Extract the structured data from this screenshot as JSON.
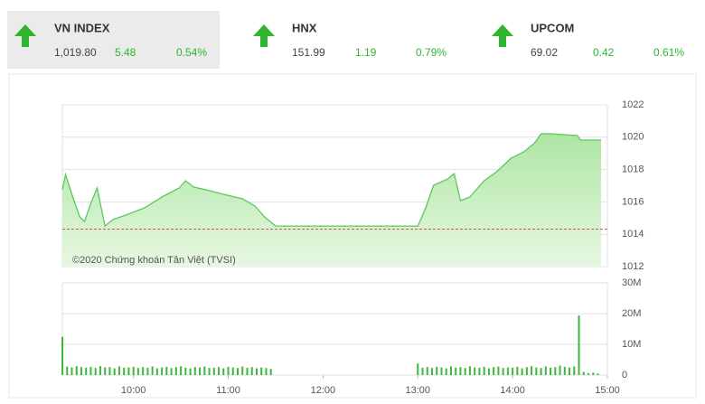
{
  "tickers": [
    {
      "name": "VN INDEX",
      "value": "1,019.80",
      "change": 5.48,
      "percent": "0.54%"
    },
    {
      "name": "HNX",
      "value": 151.99,
      "change": 1.19,
      "percent": "0.79%"
    },
    {
      "name": "UPCOM",
      "value": 69.02,
      "change": 0.42,
      "percent": "0.61%"
    }
  ],
  "chart_data": [
    {
      "type": "area",
      "annotation": "©2020 Chứng khoán Tân Việt (TVSI)",
      "color": "#5cc85c",
      "reference": 1014.32,
      "x": [
        555,
        557,
        561,
        566,
        569,
        573,
        577,
        579,
        582,
        587,
        595,
        607,
        618,
        629,
        633,
        638,
        646,
        657,
        669,
        677,
        683,
        690,
        780,
        785,
        790,
        799,
        803,
        807,
        813,
        822,
        830,
        839,
        847,
        854,
        858,
        864,
        881,
        883,
        896
      ],
      "values": [
        1016.75,
        1017.7,
        1016.47,
        1015.07,
        1014.79,
        1015.91,
        1016.86,
        1015.91,
        1014.51,
        1014.91,
        1015.18,
        1015.63,
        1016.3,
        1016.86,
        1017.31,
        1016.92,
        1016.75,
        1016.47,
        1016.19,
        1015.74,
        1015.07,
        1014.51,
        1014.51,
        1015.63,
        1017.03,
        1017.42,
        1017.75,
        1016.08,
        1016.3,
        1017.31,
        1017.87,
        1018.7,
        1019.09,
        1019.65,
        1020.21,
        1020.21,
        1020.1,
        1019.82,
        1019.82
      ],
      "xlim": [
        555,
        900
      ],
      "ylim": [
        1012,
        1022
      ],
      "yticks": [
        1012,
        1014,
        1016,
        1018,
        1020,
        1022
      ],
      "grid": true
    },
    {
      "type": "bar",
      "color": "#3cb83c",
      "x": [
        555,
        558,
        561,
        564,
        567,
        570,
        573,
        576,
        579,
        582,
        585,
        588,
        591,
        594,
        597,
        600,
        603,
        606,
        609,
        612,
        615,
        618,
        621,
        624,
        627,
        630,
        633,
        636,
        639,
        642,
        645,
        648,
        651,
        654,
        657,
        660,
        663,
        666,
        669,
        672,
        675,
        678,
        681,
        684,
        687,
        780,
        783,
        786,
        789,
        792,
        795,
        798,
        801,
        804,
        807,
        810,
        813,
        816,
        819,
        822,
        825,
        828,
        831,
        834,
        837,
        840,
        843,
        846,
        849,
        852,
        855,
        858,
        861,
        864,
        867,
        870,
        873,
        876,
        879,
        882,
        885,
        888,
        891,
        894
      ],
      "values": [
        12.4,
        2.8,
        2.5,
        2.9,
        2.6,
        2.4,
        2.7,
        2.3,
        2.9,
        2.5,
        2.6,
        2.2,
        2.8,
        2.4,
        2.5,
        2.7,
        2.3,
        2.6,
        2.4,
        2.8,
        2.2,
        2.5,
        2.7,
        2.3,
        2.6,
        2.9,
        2.4,
        2.2,
        2.6,
        2.5,
        2.8,
        2.3,
        2.4,
        2.6,
        2.2,
        2.7,
        2.5,
        2.3,
        2.8,
        2.4,
        2.6,
        2.2,
        2.5,
        2.3,
        2.0,
        3.8,
        2.4,
        2.6,
        2.3,
        2.7,
        2.5,
        2.2,
        2.8,
        2.4,
        2.6,
        2.3,
        2.9,
        2.5,
        2.4,
        2.7,
        2.2,
        2.6,
        2.8,
        2.3,
        2.5,
        2.4,
        2.7,
        2.2,
        2.6,
        2.9,
        2.5,
        2.3,
        2.8,
        2.4,
        2.6,
        3.1,
        2.7,
        2.5,
        2.8,
        19.4,
        1.0,
        0.6,
        0.8,
        0.5
      ],
      "xlim": [
        555,
        900
      ],
      "ylim": [
        0,
        30
      ],
      "yticks": [
        0,
        {
          "value": 10,
          "label": "10M"
        },
        {
          "value": 20,
          "label": "20M"
        },
        {
          "value": 30,
          "label": "30M"
        }
      ],
      "xticks": [
        {
          "value": 600,
          "label": "10:00"
        },
        {
          "value": 660,
          "label": "11:00"
        },
        {
          "value": 720,
          "label": "12:00"
        },
        {
          "value": 780,
          "label": "13:00"
        },
        {
          "value": 840,
          "label": "14:00"
        },
        {
          "value": 900,
          "label": "15:00"
        }
      ],
      "grid": true
    }
  ]
}
